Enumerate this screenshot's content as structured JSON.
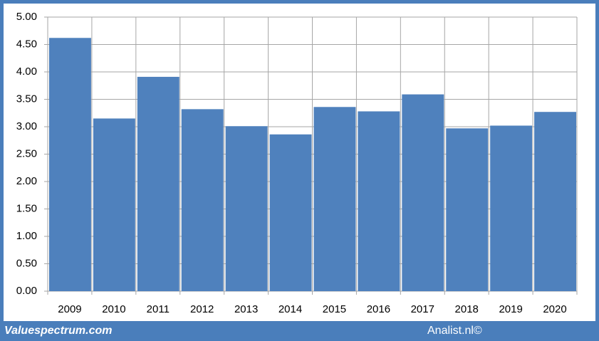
{
  "chart_data": {
    "type": "bar",
    "categories": [
      "2009",
      "2010",
      "2011",
      "2012",
      "2013",
      "2014",
      "2015",
      "2016",
      "2017",
      "2018",
      "2019",
      "2020"
    ],
    "values": [
      4.62,
      3.15,
      3.91,
      3.32,
      3.01,
      2.86,
      3.36,
      3.28,
      3.59,
      2.97,
      3.02,
      3.27
    ],
    "color": "#4f81bd",
    "ylim": [
      0,
      5
    ],
    "yticks": [
      {
        "value": 0,
        "label": "0.00"
      },
      {
        "value": 0.5,
        "label": "0.50"
      },
      {
        "value": 1,
        "label": "1.00"
      },
      {
        "value": 1.5,
        "label": "1.50"
      },
      {
        "value": 2,
        "label": "2.00"
      },
      {
        "value": 2.5,
        "label": "2.50"
      },
      {
        "value": 3,
        "label": "3.00"
      },
      {
        "value": 3.5,
        "label": "3.50"
      },
      {
        "value": 4,
        "label": "4.00"
      },
      {
        "value": 4.5,
        "label": "4.50"
      },
      {
        "value": 5,
        "label": "5.00"
      }
    ],
    "grid": true,
    "source_left": "Valuespectrum.com",
    "source_right": "Analist.nl©"
  }
}
